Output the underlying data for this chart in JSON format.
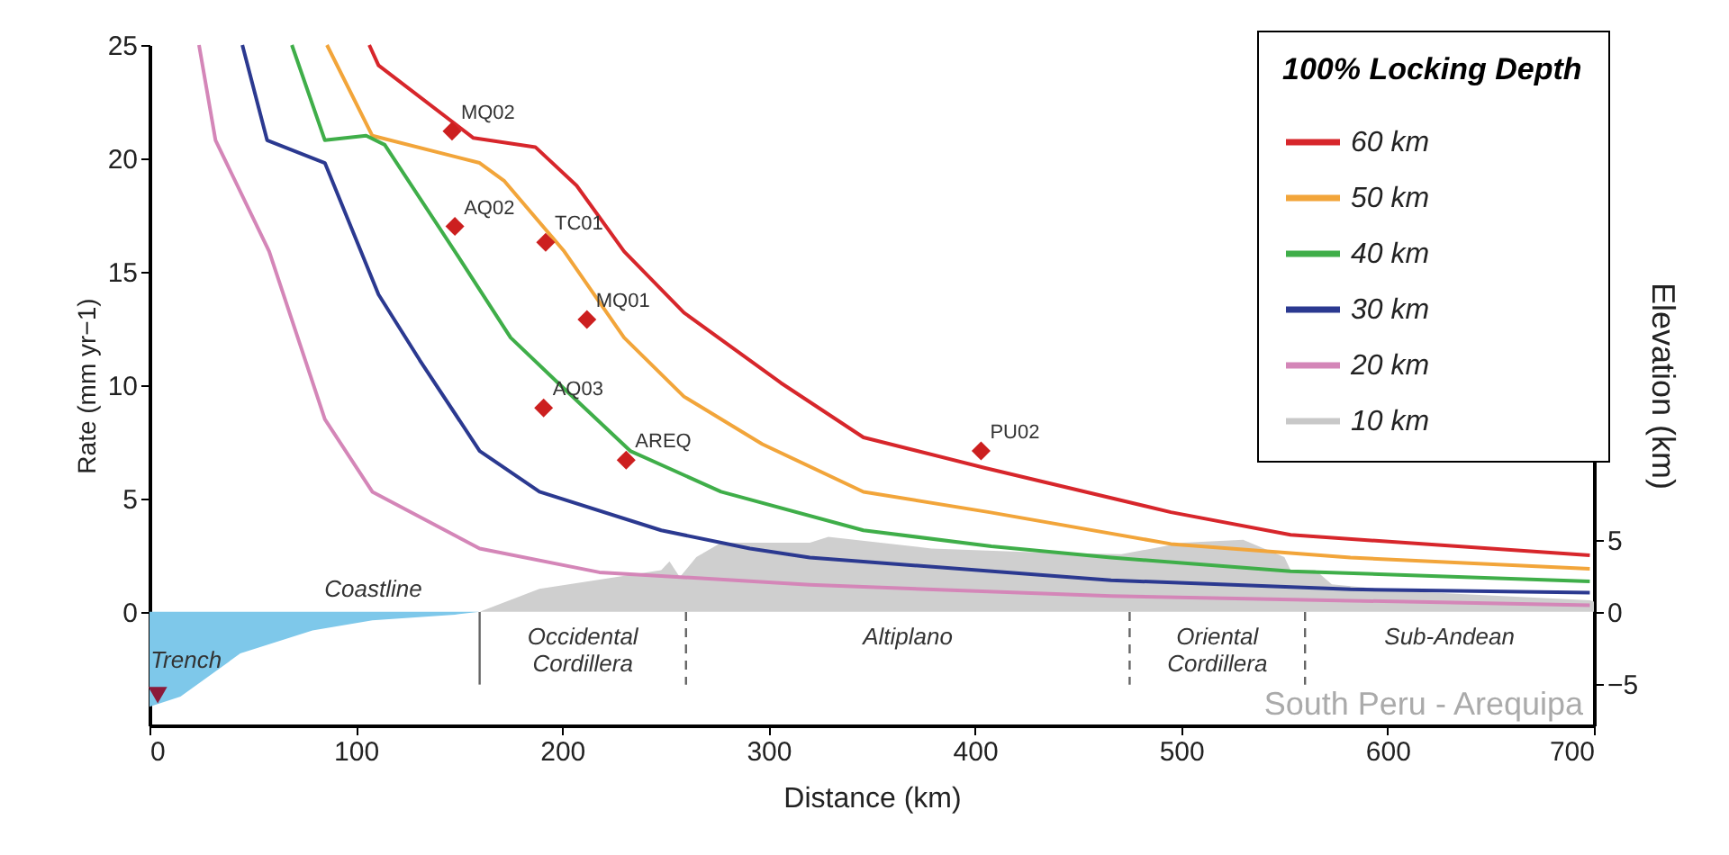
{
  "chart_data": {
    "type": "line",
    "xlabel": "Distance (km)",
    "ylabel": "Rate (mm yr−1)",
    "y2label": "Elevation (km)",
    "legend_title": "100% Locking Depth",
    "legend": "top right",
    "line_style": "solid",
    "xlim": [
      0,
      700
    ],
    "xticks": [
      0,
      100,
      200,
      300,
      400,
      500,
      600,
      700
    ],
    "ylim": [
      -5,
      25
    ],
    "yticks": [
      0,
      5,
      10,
      15,
      20,
      25
    ],
    "y2lim": [
      -7.9,
      39.4
    ],
    "y2ticks": [
      -5,
      0,
      5
    ],
    "series": [
      {
        "type": "area",
        "axis": "y2",
        "color": "#7ec8ea",
        "x": [
          0,
          15,
          44,
          79,
          108,
          148,
          160
        ],
        "values": [
          -6.6,
          -5.9,
          -2.9,
          -1.3,
          -0.6,
          -0.2,
          0
        ]
      },
      {
        "type": "area",
        "axis": "y2",
        "color": "#cfcfcf",
        "x": [
          160,
          189,
          248,
          252,
          257,
          265,
          277,
          306,
          320,
          329,
          379,
          436,
          471,
          501,
          530,
          550,
          553,
          565,
          573,
          611,
          698,
          700
        ],
        "values": [
          0,
          1.6,
          2.9,
          3.5,
          2.4,
          3.8,
          4.8,
          4.8,
          4.8,
          5.2,
          4.4,
          4.1,
          4.0,
          4.8,
          5.0,
          3.8,
          2.9,
          2.9,
          1.9,
          1.4,
          0.8,
          0.7
        ]
      },
      {
        "name": "60 km",
        "color": "#d7262b",
        "x": [
          106.5,
          111,
          157,
          187,
          207,
          230,
          259,
          306,
          346,
          405,
          495,
          553,
          698
        ],
        "values": [
          25,
          24.1,
          20.9,
          20.5,
          18.8,
          15.9,
          13.2,
          10.1,
          7.7,
          6.35,
          4.4,
          3.4,
          2.5
        ]
      },
      {
        "name": "50 km",
        "color": "#f2a53a",
        "x": [
          86,
          108,
          160,
          172,
          201,
          230,
          259,
          297,
          346,
          407,
          495,
          582,
          698
        ],
        "values": [
          25,
          21,
          19.8,
          19,
          15.9,
          12.1,
          9.5,
          7.4,
          5.3,
          4.4,
          3.0,
          2.4,
          1.9
        ]
      },
      {
        "name": "40 km",
        "color": "#3fae49",
        "x": [
          69,
          85,
          105,
          114,
          148,
          175,
          198,
          233,
          277,
          346,
          408,
          466,
          553,
          698
        ],
        "values": [
          25,
          20.8,
          21,
          20.6,
          15.9,
          12.1,
          10.1,
          7.1,
          5.3,
          3.6,
          2.9,
          2.4,
          1.8,
          1.35
        ]
      },
      {
        "name": "30 km",
        "color": "#2b3990",
        "x": [
          45,
          57,
          85,
          111,
          131,
          160,
          189,
          248,
          291,
          320,
          466,
          582,
          698
        ],
        "values": [
          25,
          20.8,
          19.8,
          14,
          11.1,
          7.1,
          5.3,
          3.6,
          2.8,
          2.4,
          1.4,
          1.0,
          0.85
        ]
      },
      {
        "name": "20 km",
        "color": "#d486b8",
        "x": [
          24,
          32,
          58,
          85,
          108,
          160,
          218,
          320,
          466,
          698
        ],
        "values": [
          25,
          20.8,
          15.9,
          8.5,
          5.3,
          2.8,
          1.75,
          1.2,
          0.7,
          0.3
        ]
      },
      {
        "name": "10 km",
        "color": "#c8c8c8"
      },
      {
        "type": "scatter",
        "marker": "diamond",
        "color": "#cc1f1f",
        "x": [
          146.6,
          148,
          192,
          212,
          191,
          231,
          403
        ],
        "values": [
          21.2,
          17.0,
          16.3,
          12.9,
          9.0,
          6.7,
          7.1
        ]
      },
      {
        "type": "scatter",
        "name": "Trench",
        "marker": "triangle",
        "axis": "y2",
        "color": "#8b1a3a",
        "x": [
          4
        ],
        "values": [
          -5.8
        ]
      }
    ],
    "ref_lines": [
      {
        "axis": "x",
        "value": 160,
        "line_style": "solid",
        "color": "#666666",
        "label": "Coastline"
      },
      {
        "axis": "x",
        "value": 260,
        "line_style": "dashed",
        "color": "#666666"
      },
      {
        "axis": "x",
        "value": 475,
        "line_style": "dashed",
        "color": "#666666"
      },
      {
        "axis": "x",
        "value": 560,
        "line_style": "dashed",
        "color": "#666666"
      }
    ],
    "annotations": [
      {
        "text": "MQ02",
        "x": 146.6,
        "y": 21.2
      },
      {
        "text": "AQ02",
        "x": 148,
        "y": 17.0
      },
      {
        "text": "TC01",
        "x": 192,
        "y": 16.3
      },
      {
        "text": "MQ01",
        "x": 212,
        "y": 12.9
      },
      {
        "text": "AQ03",
        "x": 191,
        "y": 9.0
      },
      {
        "text": "AREQ",
        "x": 231,
        "y": 6.7
      },
      {
        "text": "PU02",
        "x": 403,
        "y": 7.1
      },
      "Occidental\nCordillera",
      "Altiplano",
      "Oriental\nCordillera",
      "Sub-Andean",
      "South Peru - Arequipa"
    ]
  }
}
